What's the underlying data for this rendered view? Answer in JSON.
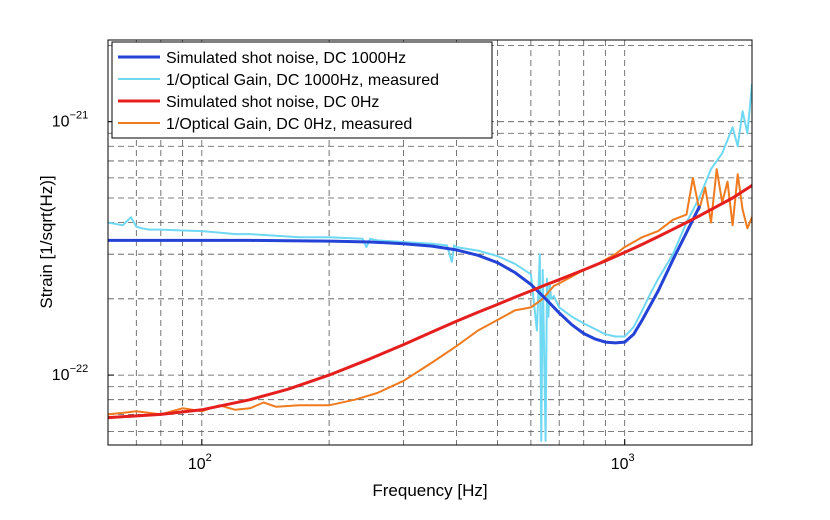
{
  "chart_data": {
    "type": "line",
    "title": "",
    "xlabel": "Frequency [Hz]",
    "ylabel": "Strain [1/sqrt(Hz)]",
    "xscale": "log",
    "yscale": "log",
    "xlim": [
      60,
      2000
    ],
    "ylim": [
      5.3e-23,
      2.1e-21
    ],
    "grid": true,
    "x_ticks": [
      {
        "value": 100,
        "base": "10",
        "exp": "2"
      },
      {
        "value": 1000,
        "base": "10",
        "exp": "3"
      }
    ],
    "y_ticks": [
      {
        "value": 1e-22,
        "base": "10",
        "exp": "−22"
      },
      {
        "value": 1e-21,
        "base": "10",
        "exp": "−21"
      }
    ],
    "legend_position": "top-left",
    "series": [
      {
        "name": "Simulated shot noise, DC 1000Hz",
        "color": "#2443d6",
        "x": [
          60,
          80,
          100,
          130,
          160,
          200,
          250,
          300,
          350,
          400,
          450,
          500,
          550,
          600,
          650,
          700,
          750,
          800,
          850,
          900,
          950,
          1000,
          1050,
          1100,
          1200,
          1300,
          1400,
          1500
        ],
        "y": [
          3.4e-22,
          3.4e-22,
          3.4e-22,
          3.4e-22,
          3.39e-22,
          3.38e-22,
          3.35e-22,
          3.3e-22,
          3.23e-22,
          3.12e-22,
          2.97e-22,
          2.78e-22,
          2.54e-22,
          2.28e-22,
          2e-22,
          1.76e-22,
          1.58e-22,
          1.46e-22,
          1.39e-22,
          1.35e-22,
          1.34e-22,
          1.35e-22,
          1.45e-22,
          1.65e-22,
          2.15e-22,
          2.85e-22,
          3.65e-22,
          4.6e-22
        ]
      },
      {
        "name": "1/Optical Gain, DC 1000Hz, measured",
        "color": "#6fd8f2",
        "x": [
          60,
          65,
          68,
          70,
          72,
          75,
          80,
          90,
          100,
          110,
          120,
          130,
          150,
          170,
          200,
          240,
          245,
          250,
          260,
          300,
          350,
          380,
          390,
          395,
          400,
          450,
          500,
          550,
          600,
          620,
          630,
          635,
          640,
          645,
          650,
          655,
          660,
          665,
          670,
          680,
          700,
          750,
          800,
          850,
          900,
          950,
          1000,
          1050,
          1100,
          1150,
          1200,
          1300,
          1400,
          1500,
          1600,
          1700,
          1800,
          1850,
          1900,
          1950,
          2000
        ],
        "y": [
          4e-22,
          3.9e-22,
          4.2e-22,
          3.85e-22,
          3.8e-22,
          3.75e-22,
          3.75e-22,
          3.72e-22,
          3.7e-22,
          3.65e-22,
          3.6e-22,
          3.6e-22,
          3.55e-22,
          3.5e-22,
          3.5e-22,
          3.45e-22,
          3.2e-22,
          3.45e-22,
          3.4e-22,
          3.35e-22,
          3.3e-22,
          3.25e-22,
          2.8e-22,
          3.25e-22,
          3.2e-22,
          3.1e-22,
          2.95e-22,
          2.75e-22,
          2.5e-22,
          1.5e-22,
          3e-22,
          5.5e-23,
          2.6e-22,
          1.2e-22,
          5.5e-23,
          2.4e-22,
          1.7e-22,
          2.3e-22,
          2e-22,
          2.05e-22,
          1.85e-22,
          1.7e-22,
          1.6e-22,
          1.52e-22,
          1.45e-22,
          1.42e-22,
          1.42e-22,
          1.55e-22,
          1.8e-22,
          2.1e-22,
          2.4e-22,
          3e-22,
          4e-22,
          5e-22,
          6.5e-22,
          7.5e-22,
          9.5e-22,
          8e-22,
          1.1e-21,
          9e-22,
          1.4e-21
        ]
      },
      {
        "name": "Simulated shot noise, DC 0Hz",
        "color": "#e51e1e",
        "x": [
          60,
          80,
          100,
          130,
          160,
          200,
          250,
          300,
          350,
          400,
          450,
          500,
          550,
          600,
          650,
          700,
          800,
          900,
          1000,
          1100,
          1200,
          1300,
          1400,
          1500,
          1600,
          1700,
          1800,
          1900,
          2000
        ],
        "y": [
          6.8e-23,
          7e-23,
          7.3e-23,
          8e-23,
          8.8e-23,
          1e-22,
          1.16e-22,
          1.32e-22,
          1.48e-22,
          1.63e-22,
          1.77e-22,
          1.9e-22,
          2.03e-22,
          2.15e-22,
          2.27e-22,
          2.38e-22,
          2.6e-22,
          2.82e-22,
          3.05e-22,
          3.28e-22,
          3.52e-22,
          3.76e-22,
          4e-22,
          4.25e-22,
          4.5e-22,
          4.75e-22,
          5e-22,
          5.3e-22,
          5.6e-22
        ]
      },
      {
        "name": "1/Optical Gain, DC 0Hz, measured",
        "color": "#f07a1e",
        "x": [
          60,
          70,
          80,
          90,
          100,
          110,
          120,
          130,
          140,
          150,
          170,
          200,
          230,
          260,
          300,
          350,
          400,
          450,
          500,
          550,
          600,
          640,
          680,
          700,
          750,
          800,
          850,
          900,
          950,
          1000,
          1100,
          1200,
          1300,
          1400,
          1450,
          1500,
          1550,
          1600,
          1650,
          1700,
          1750,
          1800,
          1850,
          1900,
          1950,
          2000
        ],
        "y": [
          7e-23,
          7.2e-23,
          7e-23,
          7.4e-23,
          7.2e-23,
          7.6e-23,
          7.3e-23,
          7.4e-23,
          7.8e-23,
          7.5e-23,
          7.6e-23,
          7.6e-23,
          8e-23,
          8.5e-23,
          9.5e-23,
          1.12e-22,
          1.3e-22,
          1.5e-22,
          1.65e-22,
          1.8e-22,
          1.85e-22,
          2e-22,
          2.25e-22,
          2.3e-22,
          2.45e-22,
          2.6e-22,
          2.7e-22,
          2.85e-22,
          3e-22,
          3.2e-22,
          3.5e-22,
          3.7e-22,
          4.1e-22,
          4.3e-22,
          6e-22,
          4.5e-22,
          5.5e-22,
          4e-22,
          6.5e-22,
          4.8e-22,
          5.8e-22,
          3.9e-22,
          6.2e-22,
          4.5e-22,
          3.8e-22,
          4.2e-22
        ]
      }
    ]
  }
}
